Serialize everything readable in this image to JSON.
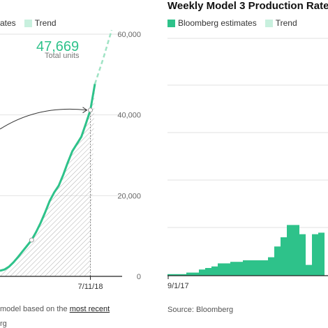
{
  "left_panel": {
    "legend": {
      "estimates_label": "ates",
      "trend_label": "Trend"
    },
    "highlight": {
      "value": "47,669",
      "label": "Total units"
    },
    "footnote": {
      "prefix": "model based on the ",
      "link": "most recent",
      "source_fragment": "rg"
    }
  },
  "right_panel": {
    "title": "Weekly Model 3 Production Rate",
    "legend": {
      "estimates_label": "Bloomberg estimates",
      "trend_label": "Trend"
    },
    "source": "Source: Bloomberg"
  },
  "colors": {
    "accent": "#2ec28a",
    "trend": "#c8f0de",
    "grid": "#e2e2e2",
    "axis": "#222222"
  },
  "chart_data": [
    {
      "type": "area",
      "title": "",
      "xlabel": "",
      "ylabel": "",
      "x_tick_labels": [
        "7/11/18"
      ],
      "y_tick_labels": [
        "0",
        "20,000",
        "40,000",
        "60,000"
      ],
      "ylim": [
        0,
        60000
      ],
      "grid": true,
      "series": [
        {
          "name": "estimates",
          "values": [
            1400,
            1700,
            2400,
            3500,
            4800,
            6200,
            7600,
            9000,
            11000,
            13300,
            15900,
            18700,
            20800,
            22500,
            25200,
            28200,
            31000,
            32800,
            34600,
            37800,
            41200,
            47669
          ]
        },
        {
          "name": "Trend",
          "values": [
            47669,
            54000,
            61000
          ]
        }
      ],
      "annotations": [
        "47,669",
        "Total units"
      ]
    },
    {
      "type": "bar",
      "title": "Weekly Model 3 Production Rate",
      "xlabel": "",
      "ylabel": "",
      "x_tick_labels": [
        "9/1/17"
      ],
      "grid": true,
      "legend": [
        "Bloomberg estimates",
        "Trend"
      ],
      "series": [
        {
          "name": "Bloomberg estimates",
          "values": [
            5,
            5,
            5,
            10,
            10,
            20,
            25,
            30,
            40,
            40,
            45,
            45,
            50,
            50,
            50,
            50,
            60,
            95,
            125,
            165,
            165,
            135,
            35,
            135,
            140
          ]
        }
      ]
    }
  ]
}
